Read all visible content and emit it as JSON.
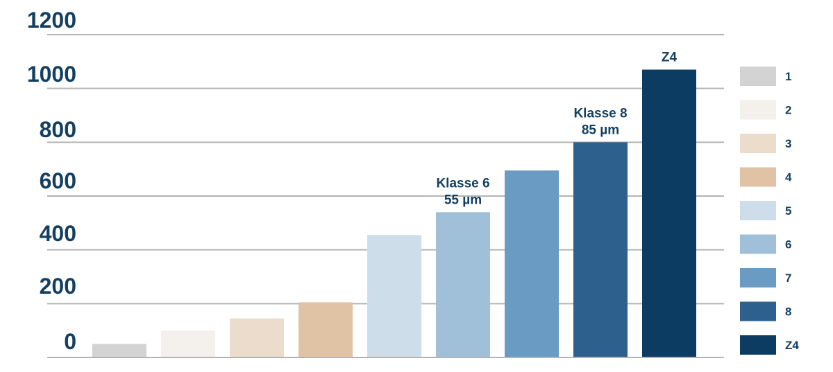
{
  "chart_data": {
    "type": "bar",
    "categories": [
      "1",
      "2",
      "3",
      "4",
      "5",
      "6",
      "7",
      "8",
      "Z4"
    ],
    "values": [
      50,
      100,
      145,
      205,
      455,
      540,
      695,
      800,
      1070
    ],
    "colors": [
      "#d3d3d3",
      "#f4f1ec",
      "#ecdccc",
      "#e0c3a5",
      "#cddeea",
      "#a0c0da",
      "#6a9cc3",
      "#2d608c",
      "#0d3c62"
    ],
    "ylim": [
      0,
      1200
    ],
    "y_ticks": [
      "0",
      "200",
      "400",
      "600",
      "800",
      "1000",
      "1200"
    ],
    "grid": true,
    "legend_position": "right",
    "legend_labels": [
      "1",
      "2",
      "3",
      "4",
      "5",
      "6",
      "7",
      "8",
      "Z4"
    ],
    "annotations": [
      {
        "category": "6",
        "lines": [
          "Klasse 6",
          "55 µm"
        ]
      },
      {
        "category": "8",
        "lines": [
          "Klasse 8",
          "85  µm"
        ]
      },
      {
        "category": "Z4",
        "lines": [
          "Z4"
        ]
      }
    ]
  }
}
